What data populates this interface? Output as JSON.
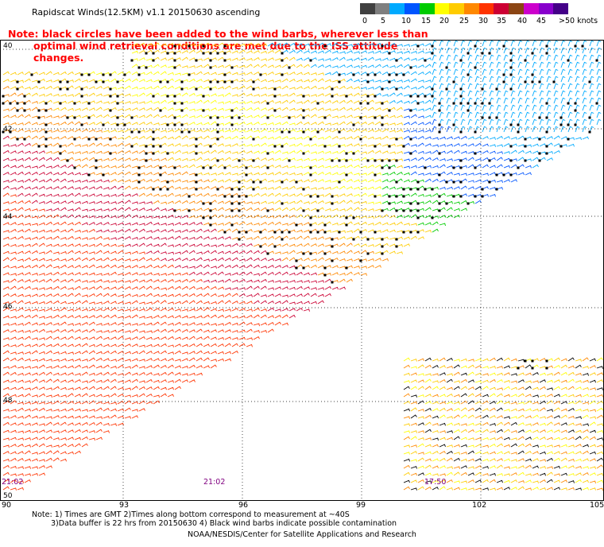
{
  "title": "Rapidscat Winds(12.5KM) v1.1 20150630 ascending",
  "note_line1": "Note: black circles have been added to the wind barbs, wherever less than",
  "note_line2": "optimal wind retrieval conditions are met due to the ISS attitude changes.",
  "legend": {
    "colors": [
      "#404040",
      "#7f7f7f",
      "#00aaff",
      "#0055ff",
      "#00cc00",
      "#ffff00",
      "#ffcc00",
      "#ff8800",
      "#ff3300",
      "#cc0033",
      "#8b4513",
      "#cc00cc",
      "#8800cc",
      "#440088"
    ],
    "labels": [
      "0",
      "5",
      "10",
      "15",
      "20",
      "25",
      "30",
      "35",
      "40",
      "45",
      ">50 knots"
    ]
  },
  "map": {
    "lat_labels": [
      "40",
      "42",
      "44",
      "46",
      "48",
      "50"
    ],
    "lon_labels": [
      "90",
      "93",
      "96",
      "99",
      "102",
      "105"
    ],
    "time_labels": [
      {
        "text": "21:02",
        "region": "left-swath"
      },
      {
        "text": "21:02",
        "region": "center-swath"
      },
      {
        "text": "17:50",
        "region": "right-swath"
      }
    ]
  },
  "footnote_line1": "Note: 1) Times are GMT 2)Times along bottom correspond to measurement at ~40S",
  "footnote_line2": "3)Data buffer is 22 hrs from 20150630 4) Black wind barbs indicate possible contamination",
  "credit": "NOAA/NESDIS/Center for Satellite Applications and Research"
}
